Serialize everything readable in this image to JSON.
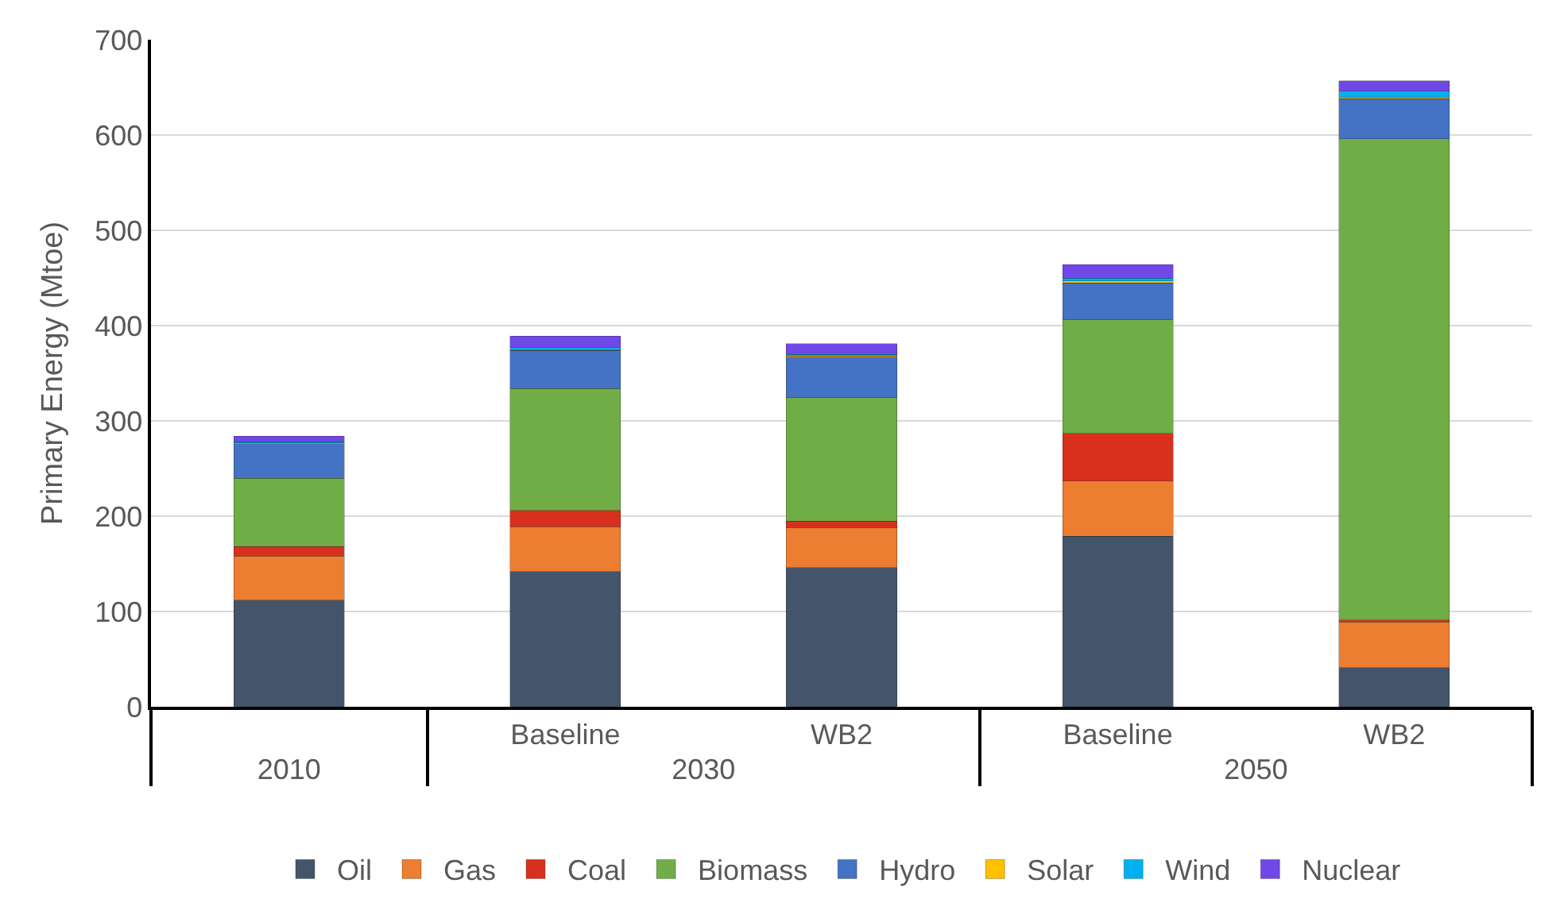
{
  "chart_data": {
    "type": "bar",
    "stacked": true,
    "ylabel": "Primary Energy (Mtoe)",
    "categories": [
      null,
      "Baseline",
      "WB2",
      "Baseline",
      "WB2"
    ],
    "annotations": [
      "2010",
      "2030",
      "2050"
    ],
    "ylim": [
      0,
      700
    ],
    "yticks": [
      0,
      100,
      200,
      300,
      400,
      500,
      600,
      700
    ],
    "grid": "y",
    "legend": "bottom",
    "series": [
      {
        "name": "Oil",
        "color": "#44546a",
        "values": [
          112,
          142,
          146,
          179,
          41
        ]
      },
      {
        "name": "Gas",
        "color": "#ed7d31",
        "values": [
          46,
          47,
          42,
          58,
          48
        ]
      },
      {
        "name": "Coal",
        "color": "#d9301e",
        "values": [
          10,
          17,
          7,
          50,
          2
        ]
      },
      {
        "name": "Biomass",
        "color": "#70ad47",
        "values": [
          72,
          128,
          130,
          119,
          505
        ]
      },
      {
        "name": "Hydro",
        "color": "#4472c4",
        "values": [
          36,
          40,
          42,
          39,
          42
        ]
      },
      {
        "name": "Solar",
        "color": "#ffc000",
        "values": [
          1,
          1,
          1,
          2,
          2
        ]
      },
      {
        "name": "Wind",
        "color": "#00b0f0",
        "values": [
          1,
          2,
          2,
          3,
          6
        ]
      },
      {
        "name": "Nuclear",
        "color": "#7048e8",
        "values": [
          6,
          12,
          11,
          14,
          11
        ]
      }
    ]
  }
}
